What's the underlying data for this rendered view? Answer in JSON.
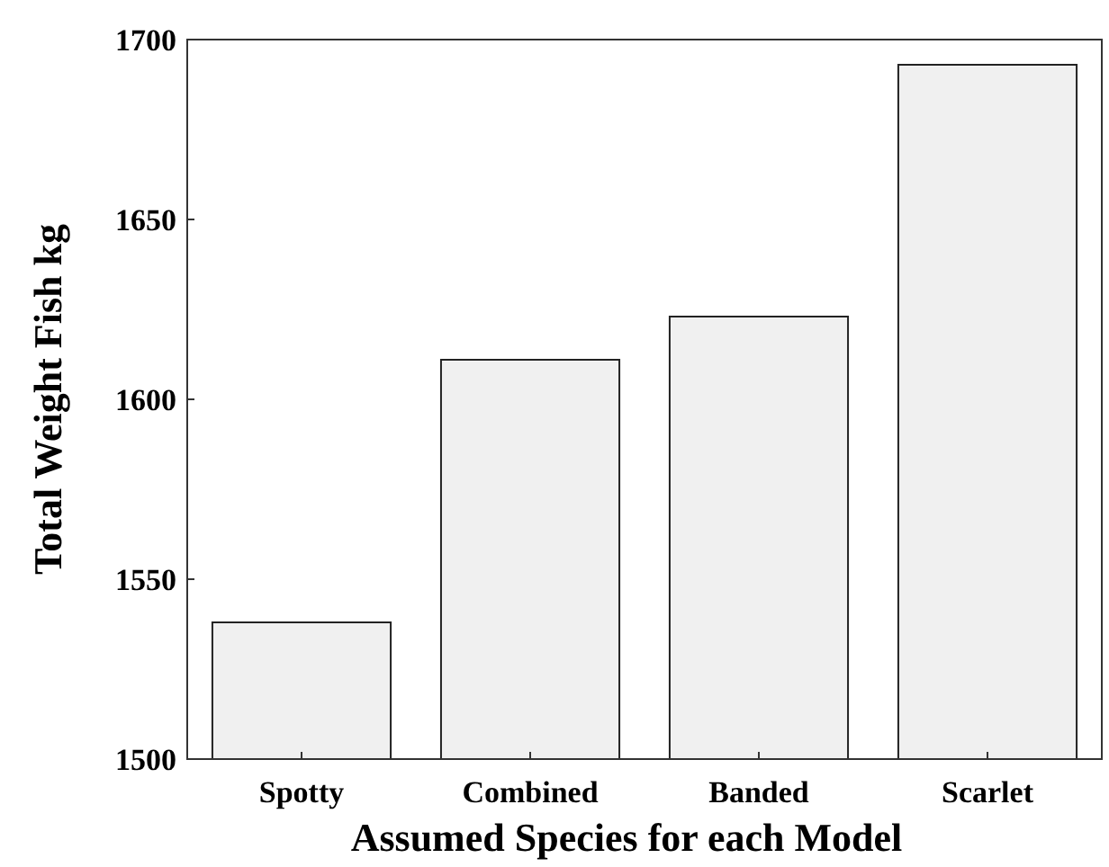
{
  "chart_data": {
    "type": "bar",
    "xlabel": "Assumed Species for each Model",
    "ylabel": "Total Weight Fish kg",
    "categories": [
      "Spotty",
      "Combined",
      "Banded",
      "Scarlet"
    ],
    "values": [
      1538,
      1611,
      1623,
      1693
    ],
    "color": "#f0f0f0",
    "ylim": [
      1500,
      1700
    ],
    "yticks": [
      1500,
      1550,
      1600,
      1650,
      1700
    ],
    "grid": false
  }
}
